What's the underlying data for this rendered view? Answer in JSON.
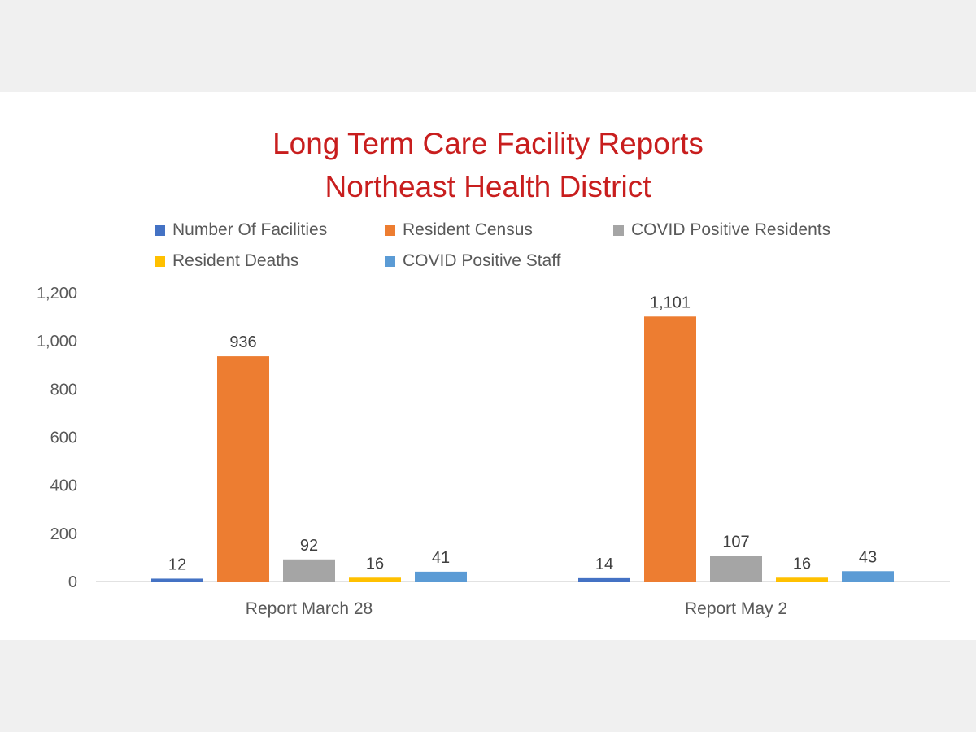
{
  "chart_data": {
    "type": "bar",
    "title": [
      "Long Term Care Facility Reports",
      "Northeast Health District"
    ],
    "categories": [
      "Report March 28",
      "Report May 2"
    ],
    "series": [
      {
        "name": "Number Of Facilities",
        "values": [
          12,
          14
        ],
        "labels": [
          "12",
          "14"
        ],
        "color": "#4472c4"
      },
      {
        "name": "Resident Census",
        "values": [
          936,
          1101
        ],
        "labels": [
          "936",
          "1,101"
        ],
        "color": "#ed7d31"
      },
      {
        "name": "COVID Positive Residents",
        "values": [
          92,
          107
        ],
        "labels": [
          "92",
          "107"
        ],
        "color": "#a5a5a5"
      },
      {
        "name": "Resident Deaths",
        "values": [
          16,
          16
        ],
        "labels": [
          "16",
          "16"
        ],
        "color": "#ffc000"
      },
      {
        "name": "COVID Positive Staff",
        "values": [
          41,
          43
        ],
        "labels": [
          "41",
          "43"
        ],
        "color": "#5b9bd5"
      }
    ],
    "ylim": [
      0,
      1200
    ],
    "yticks": [
      0,
      200,
      400,
      600,
      800,
      1000,
      1200
    ],
    "ytick_labels": [
      "0",
      "200",
      "400",
      "600",
      "800",
      "1,000",
      "1,200"
    ],
    "grid": false,
    "legend_position": "top",
    "colors": {
      "title": "#c81e1e",
      "text": "#595959",
      "axis": "#d9d9d9",
      "background_band": "#f0f0f0"
    }
  }
}
